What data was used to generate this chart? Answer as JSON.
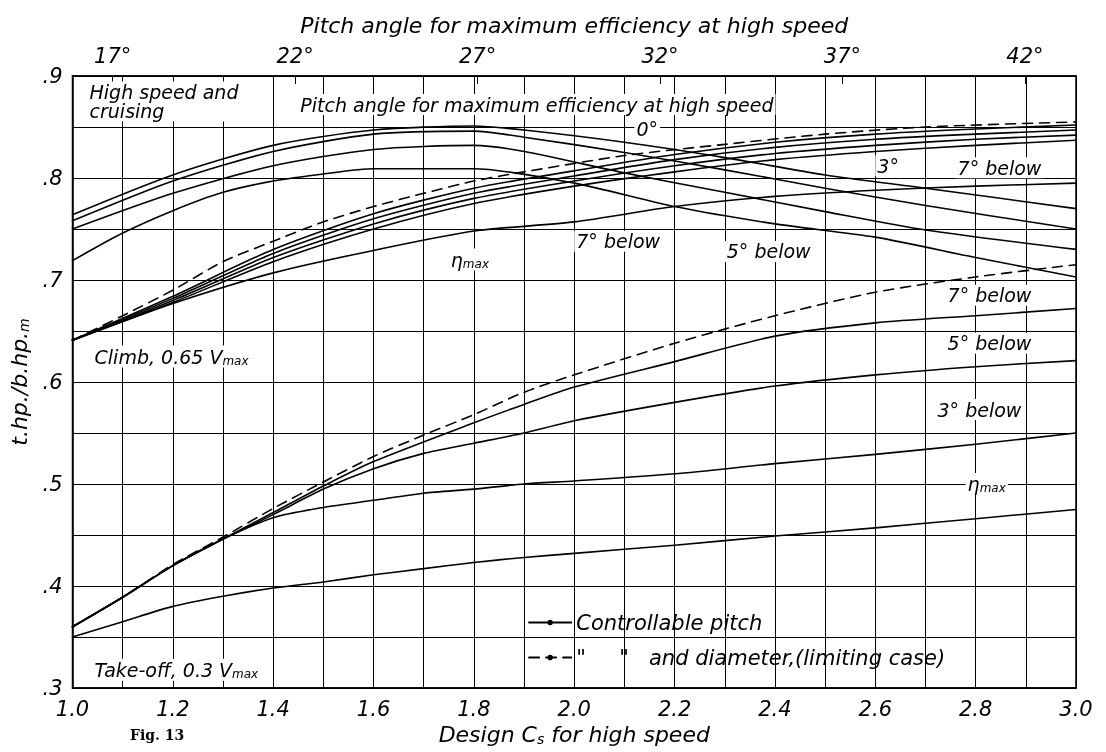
{
  "chart_data": {
    "type": "line",
    "xlabel": "Design C$_{s}$ for high speed",
    "ylabel": "t.hp./b.hp.$_{m}$",
    "x2label": "Pitch angle for maximum efficiency at high speed",
    "xlim": [
      1,
      3
    ],
    "xticks": [
      {
        "value": 1,
        "label": "1.0"
      },
      {
        "value": 1.1,
        "label": null
      },
      1.2,
      {
        "value": 1.3,
        "label": null
      },
      1.4,
      {
        "value": 1.5,
        "label": null
      },
      1.6,
      {
        "value": 1.7,
        "label": null
      },
      1.8,
      {
        "value": 1.9,
        "label": null
      },
      {
        "value": 2,
        "label": "2.0"
      },
      {
        "value": 2.1,
        "label": null
      },
      2.2,
      {
        "value": 2.3,
        "label": null
      },
      2.4,
      {
        "value": 2.5,
        "label": null
      },
      2.6,
      {
        "value": 2.7,
        "label": null
      },
      2.8,
      {
        "value": 2.9,
        "label": null
      },
      {
        "value": 3,
        "label": "3.0"
      }
    ],
    "x2lim": [
      15.9,
      43.4
    ],
    "x2ticks": [
      {
        "value": 17,
        "label": "17°"
      },
      {
        "value": 22,
        "label": "22°"
      },
      {
        "value": 27,
        "label": "27°"
      },
      {
        "value": 32,
        "label": "32°"
      },
      {
        "value": 37,
        "label": "37°"
      },
      {
        "value": 42,
        "label": "42°"
      }
    ],
    "ylim": [
      0.3,
      0.9
    ],
    "yticks": [
      {
        "value": 0.3,
        "label": ".3"
      },
      {
        "value": 0.35,
        "label": null
      },
      {
        "value": 0.4,
        "label": ".4"
      },
      {
        "value": 0.45,
        "label": null
      },
      {
        "value": 0.5,
        "label": ".5"
      },
      {
        "value": 0.55,
        "label": null
      },
      {
        "value": 0.6,
        "label": ".6"
      },
      {
        "value": 0.65,
        "label": null
      },
      {
        "value": 0.7,
        "label": ".7"
      },
      {
        "value": 0.75,
        "label": null
      },
      {
        "value": 0.8,
        "label": ".8"
      },
      {
        "value": 0.85,
        "label": null
      },
      {
        "value": 0.9,
        "label": ".9"
      }
    ],
    "grid": true,
    "legend": "bottom right",
    "line_style": "solid",
    "series": [
      {
        "name": "Controllable pitch",
        "color": "#000000",
        "x": [
          1.0,
          1.2,
          1.4,
          1.6,
          1.8,
          1.9,
          2.1,
          2.3,
          2.5,
          2.7,
          3.0
        ],
        "values": [
          0.764,
          0.803,
          0.832,
          0.847,
          0.851,
          0.847,
          0.835,
          0.82,
          0.803,
          0.79,
          0.77
        ]
      },
      {
        "color": "#000000",
        "x": [
          1.0,
          1.2,
          1.4,
          1.6,
          1.8,
          1.9,
          2.1,
          2.3,
          2.5,
          2.7,
          3.0
        ],
        "values": [
          0.758,
          0.797,
          0.826,
          0.843,
          0.846,
          0.84,
          0.825,
          0.808,
          0.79,
          0.773,
          0.75
        ]
      },
      {
        "color": "#000000",
        "x": [
          1.0,
          1.2,
          1.4,
          1.6,
          1.8,
          1.9,
          2.1,
          2.3,
          2.5,
          2.7,
          3.0
        ],
        "values": [
          0.75,
          0.785,
          0.812,
          0.828,
          0.832,
          0.826,
          0.805,
          0.786,
          0.767,
          0.749,
          0.73
        ]
      },
      {
        "color": "#000000",
        "x": [
          1.0,
          1.1,
          1.2,
          1.3,
          1.4,
          1.5,
          1.6,
          1.8,
          2.0,
          2.2,
          2.4,
          2.6,
          2.8,
          3.0
        ],
        "values": [
          0.719,
          0.746,
          0.768,
          0.786,
          0.797,
          0.804,
          0.809,
          0.809,
          0.795,
          0.772,
          0.755,
          0.742,
          0.722,
          0.703
        ]
      },
      {
        "name": "\"     \"   and diameter,(limiting case)",
        "color": "#000000",
        "line_style": "dashed",
        "x": [
          1.0,
          1.1,
          1.2,
          1.3,
          1.4,
          1.5,
          1.6,
          1.7,
          1.8,
          1.9,
          2.1,
          2.3,
          2.5,
          2.7,
          3.0
        ],
        "values": [
          0.641,
          0.665,
          0.69,
          0.718,
          0.738,
          0.757,
          0.772,
          0.785,
          0.797,
          0.806,
          0.822,
          0.833,
          0.843,
          0.85,
          0.855
        ]
      },
      {
        "color": "#000000",
        "x": [
          1.0,
          1.2,
          1.4,
          1.6,
          1.8,
          2.0,
          2.2,
          2.4,
          2.6,
          2.8,
          3.0
        ],
        "values": [
          0.641,
          0.684,
          0.73,
          0.765,
          0.79,
          0.807,
          0.823,
          0.835,
          0.843,
          0.848,
          0.852
        ]
      },
      {
        "color": "#000000",
        "x": [
          1.0,
          1.2,
          1.4,
          1.6,
          1.8,
          2.0,
          2.2,
          2.4,
          2.6,
          2.8,
          3.0
        ],
        "values": [
          0.641,
          0.682,
          0.726,
          0.76,
          0.785,
          0.802,
          0.818,
          0.83,
          0.838,
          0.843,
          0.847
        ]
      },
      {
        "color": "#000000",
        "x": [
          1.0,
          1.2,
          1.4,
          1.6,
          1.8,
          2.0,
          2.2,
          2.4,
          2.6,
          2.8,
          3.0
        ],
        "values": [
          0.641,
          0.68,
          0.722,
          0.755,
          0.78,
          0.797,
          0.812,
          0.824,
          0.832,
          0.838,
          0.842
        ]
      },
      {
        "color": "#000000",
        "x": [
          1.0,
          1.2,
          1.4,
          1.6,
          1.8,
          2.0,
          2.2,
          2.4,
          2.6,
          2.8,
          3.0
        ],
        "values": [
          0.641,
          0.678,
          0.718,
          0.75,
          0.775,
          0.792,
          0.806,
          0.818,
          0.826,
          0.832,
          0.837
        ]
      },
      {
        "color": "#000000",
        "x": [
          1.0,
          1.2,
          1.4,
          1.6,
          1.8,
          2.0,
          2.2,
          2.4,
          2.6,
          2.8,
          3.0
        ],
        "values": [
          0.641,
          0.677,
          0.707,
          0.729,
          0.748,
          0.757,
          0.772,
          0.782,
          0.788,
          0.792,
          0.795
        ]
      },
      {
        "color": "#000000",
        "line_style": "dashed",
        "x": [
          1.0,
          1.1,
          1.2,
          1.3,
          1.4,
          1.5,
          1.6,
          1.7,
          1.8,
          1.9,
          2.0,
          2.2,
          2.4,
          2.6,
          2.8,
          3.0
        ],
        "values": [
          0.36,
          0.389,
          0.421,
          0.448,
          0.476,
          0.502,
          0.527,
          0.548,
          0.568,
          0.59,
          0.607,
          0.638,
          0.665,
          0.688,
          0.703,
          0.715
        ]
      },
      {
        "color": "#000000",
        "x": [
          1.0,
          1.1,
          1.2,
          1.3,
          1.4,
          1.5,
          1.6,
          1.8,
          1.9,
          2.0,
          2.2,
          2.4,
          2.6,
          2.8,
          3.0
        ],
        "values": [
          0.36,
          0.389,
          0.42,
          0.446,
          0.472,
          0.498,
          0.522,
          0.56,
          0.578,
          0.595,
          0.62,
          0.645,
          0.658,
          0.665,
          0.672
        ]
      },
      {
        "color": "#000000",
        "x": [
          1.0,
          1.1,
          1.2,
          1.3,
          1.4,
          1.5,
          1.6,
          1.7,
          1.8,
          1.9,
          2.0,
          2.2,
          2.4,
          2.6,
          2.8,
          3.0
        ],
        "values": [
          0.36,
          0.389,
          0.42,
          0.446,
          0.47,
          0.495,
          0.515,
          0.53,
          0.54,
          0.55,
          0.562,
          0.58,
          0.596,
          0.607,
          0.615,
          0.621
        ]
      },
      {
        "color": "#000000",
        "x": [
          1.0,
          1.1,
          1.2,
          1.3,
          1.4,
          1.5,
          1.6,
          1.7,
          1.8,
          1.9,
          2.0,
          2.2,
          2.4,
          2.6,
          2.8,
          3.0
        ],
        "values": [
          0.36,
          0.389,
          0.42,
          0.446,
          0.467,
          0.477,
          0.484,
          0.491,
          0.495,
          0.5,
          0.503,
          0.51,
          0.52,
          0.529,
          0.539,
          0.55
        ]
      },
      {
        "color": "#000000",
        "x": [
          1.0,
          1.1,
          1.2,
          1.3,
          1.4,
          1.5,
          1.6,
          1.7,
          1.8,
          1.9,
          2.0,
          2.2,
          2.4,
          2.6,
          2.8,
          3.0
        ],
        "values": [
          0.35,
          0.365,
          0.38,
          0.39,
          0.398,
          0.404,
          0.411,
          0.417,
          0.423,
          0.428,
          0.432,
          0.44,
          0.449,
          0.457,
          0.466,
          0.475
        ]
      }
    ],
    "annotations": [
      "High speed and cruising",
      "Pitch angle for maximum efficiency at high speed",
      "0°",
      "3°",
      "7° below",
      "5° below",
      "7° below",
      "η$_{max}$",
      "Climb, 0.65 V$_{max}$",
      "7° below",
      "5° below",
      "3° below",
      "η$_{max}$",
      "Take-off, 0.3 V$_{max}$",
      "Fig. 13"
    ]
  }
}
